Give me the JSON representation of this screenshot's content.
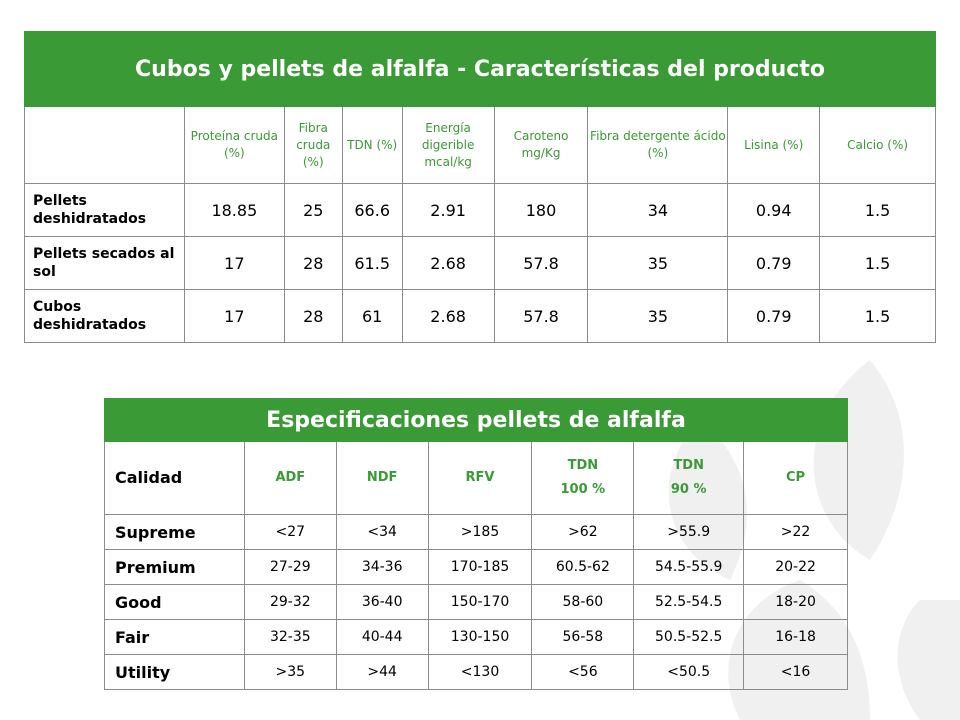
{
  "table1": {
    "title": "Cubos y pellets de alfalfa - Características del producto",
    "headers": [
      "Proteína cruda (%)",
      "Fibra cruda (%)",
      "TDN (%)",
      "Energía digerible mcal/kg",
      "Caroteno mg/Kg",
      "Fibra detergente ácido (%)",
      "Lisina (%)",
      "Calcio (%)"
    ],
    "rows": [
      {
        "label": "Pellets deshidratados",
        "values": [
          "18.85",
          "25",
          "66.6",
          "2.91",
          "180",
          "34",
          "0.94",
          "1.5"
        ]
      },
      {
        "label": "Pellets secados al sol",
        "values": [
          "17",
          "28",
          "61.5",
          "2.68",
          "57.8",
          "35",
          "0.79",
          "1.5"
        ]
      },
      {
        "label": "Cubos deshidratados",
        "values": [
          "17",
          "28",
          "61",
          "2.68",
          "57.8",
          "35",
          "0.79",
          "1.5"
        ]
      }
    ]
  },
  "table2": {
    "title": "Especificaciones pellets de alfalfa",
    "label_header": "Calidad",
    "headers": [
      "ADF",
      "NDF",
      "RFV",
      "TDN\n100 %",
      "TDN\n90 %",
      "CP"
    ],
    "rows": [
      {
        "label": "Supreme",
        "values": [
          "<27",
          "<34",
          ">185",
          ">62",
          ">55.9",
          ">22"
        ]
      },
      {
        "label": "Premium",
        "values": [
          "27-29",
          "34-36",
          "170-185",
          "60.5-62",
          "54.5-55.9",
          "20-22"
        ]
      },
      {
        "label": "Good",
        "values": [
          "29-32",
          "36-40",
          "150-170",
          "58-60",
          "52.5-54.5",
          "18-20"
        ]
      },
      {
        "label": "Fair",
        "values": [
          "32-35",
          "40-44",
          "130-150",
          "56-58",
          "50.5-52.5",
          "16-18"
        ]
      },
      {
        "label": "Utility",
        "values": [
          ">35",
          ">44",
          "<130",
          "<56",
          "<50.5",
          "<16"
        ]
      }
    ]
  },
  "colors": {
    "accent": "#3a9a35",
    "grid": "#8c8c8c"
  },
  "decoration": {
    "watermark": "leaf-watermark-icon"
  }
}
